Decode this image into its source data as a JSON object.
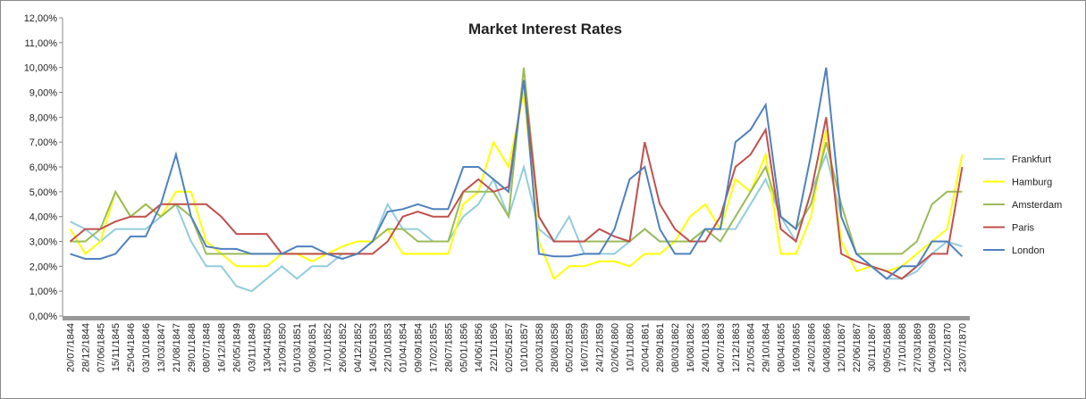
{
  "chart_data": {
    "type": "line",
    "title": "Market Interest Rates",
    "categories": [
      "20/07/1844",
      "28/12/1844",
      "07/06/1845",
      "15/11/1845",
      "25/04/1846",
      "03/10/1846",
      "13/03/1847",
      "21/08/1847",
      "29/01/1848",
      "08/07/1848",
      "16/12/1848",
      "26/05/1849",
      "03/11/1849",
      "13/04/1850",
      "21/09/1850",
      "01/03/1851",
      "09/08/1851",
      "17/01/1852",
      "26/06/1852",
      "04/12/1852",
      "14/05/1853",
      "22/10/1853",
      "01/04/1854",
      "09/09/1854",
      "17/02/1855",
      "28/07/1855",
      "05/01/1856",
      "14/06/1856",
      "22/11/1856",
      "02/05/1857",
      "10/10/1857",
      "20/03/1858",
      "28/08/1858",
      "05/02/1859",
      "16/07/1859",
      "24/12/1859",
      "02/06/1860",
      "10/11/1860",
      "20/04/1861",
      "28/09/1861",
      "08/03/1862",
      "16/08/1862",
      "24/01/1863",
      "04/07/1863",
      "12/12/1863",
      "21/05/1864",
      "29/10/1864",
      "08/04/1865",
      "16/09/1865",
      "24/02/1866",
      "04/08/1866",
      "12/01/1867",
      "22/06/1867",
      "30/11/1867",
      "09/05/1868",
      "17/10/1868",
      "27/03/1869",
      "04/09/1869",
      "12/02/1870",
      "23/07/1870"
    ],
    "series": [
      {
        "name": "Frankfurt",
        "color": "#93cddd",
        "values": [
          3.8,
          3.5,
          3,
          3.5,
          3.5,
          3.5,
          4,
          4.5,
          3,
          2,
          2,
          1.2,
          1,
          1.5,
          2,
          1.5,
          2,
          2,
          2.5,
          2.5,
          3,
          4.5,
          3.5,
          3.5,
          3,
          3,
          4,
          4.5,
          5.5,
          4,
          6,
          3.5,
          3,
          4,
          2.5,
          2.5,
          2.5,
          3,
          3.5,
          3,
          3,
          3,
          3.5,
          3.5,
          3.5,
          4.5,
          5.5,
          4,
          3,
          5,
          6.5,
          4,
          2.5,
          2,
          1.5,
          1.5,
          1.8,
          2.5,
          3,
          2.8
        ]
      },
      {
        "name": "Hamburg",
        "color": "#ffff00",
        "values": [
          3.5,
          2.5,
          3,
          5,
          4,
          4.5,
          4,
          5,
          5,
          3,
          2.5,
          2,
          2,
          2,
          2.5,
          2.5,
          2.2,
          2.5,
          2.8,
          3,
          3,
          3.5,
          2.5,
          2.5,
          2.5,
          2.5,
          4.5,
          5,
          7,
          6,
          9,
          3,
          1.5,
          2,
          2,
          2.2,
          2.2,
          2,
          2.5,
          2.5,
          3,
          4,
          4.5,
          3.5,
          5.5,
          5,
          6.5,
          2.5,
          2.5,
          4,
          7.5,
          3,
          1.8,
          2,
          1.8,
          2,
          2.5,
          3,
          3.5,
          6.5
        ]
      },
      {
        "name": "Amsterdam",
        "color": "#9bbb59",
        "values": [
          3,
          3,
          3.5,
          5,
          4,
          4.5,
          4,
          4.5,
          4,
          2.5,
          2.5,
          2.5,
          2.5,
          2.5,
          2.5,
          2.5,
          2.5,
          2.5,
          2.5,
          2.5,
          3,
          3.5,
          3.5,
          3,
          3,
          3,
          5,
          5,
          5,
          4,
          10,
          4,
          3,
          3,
          3,
          3,
          3,
          3,
          3.5,
          3,
          3,
          3,
          3.5,
          3,
          4,
          5,
          6,
          4,
          3.5,
          4.5,
          7,
          4.5,
          2.5,
          2.5,
          2.5,
          2.5,
          3,
          4.5,
          5,
          5
        ]
      },
      {
        "name": "Paris",
        "color": "#c0504d",
        "values": [
          3,
          3.5,
          3.5,
          3.8,
          4,
          4,
          4.5,
          4.5,
          4.5,
          4.5,
          4,
          3.3,
          3.3,
          3.3,
          2.5,
          2.5,
          2.5,
          2.5,
          2.5,
          2.5,
          2.5,
          3,
          4,
          4.2,
          4,
          4,
          5,
          5.5,
          5,
          5.2,
          9.5,
          4,
          3,
          3,
          3,
          3.5,
          3.2,
          3,
          7,
          4.5,
          3.5,
          3,
          3,
          4,
          6,
          6.5,
          7.5,
          3.5,
          3,
          5,
          8,
          2.5,
          2.2,
          2,
          1.8,
          1.5,
          2,
          2.5,
          2.5,
          6
        ]
      },
      {
        "name": "London",
        "color": "#4f81bd",
        "values": [
          2.5,
          2.3,
          2.3,
          2.5,
          3.2,
          3.2,
          4.5,
          6.5,
          4,
          2.8,
          2.7,
          2.7,
          2.5,
          2.5,
          2.5,
          2.8,
          2.8,
          2.5,
          2.3,
          2.5,
          3,
          4.2,
          4.3,
          4.5,
          4.3,
          4.3,
          6,
          6,
          5.5,
          5,
          9.5,
          2.5,
          2.4,
          2.4,
          2.5,
          2.5,
          3.5,
          5.5,
          6,
          3.5,
          2.5,
          2.5,
          3.5,
          3.5,
          7,
          7.5,
          8.5,
          4,
          3.5,
          6.5,
          10,
          4,
          2.5,
          2,
          1.5,
          2,
          2,
          3,
          3,
          2.4
        ]
      }
    ],
    "ylim": [
      0,
      12
    ],
    "yticks": [
      {
        "value": 0,
        "label": "0,00%"
      },
      {
        "value": 1,
        "label": "1,00%"
      },
      {
        "value": 2,
        "label": "2,00%"
      },
      {
        "value": 3,
        "label": "3,00%"
      },
      {
        "value": 4,
        "label": "4,00%"
      },
      {
        "value": 5,
        "label": "5,00%"
      },
      {
        "value": 6,
        "label": "6,00%"
      },
      {
        "value": 7,
        "label": "7,00%"
      },
      {
        "value": 8,
        "label": "8,00%"
      },
      {
        "value": 9,
        "label": "9,00%"
      },
      {
        "value": 10,
        "label": "10,00%"
      },
      {
        "value": 11,
        "label": "11,00%"
      },
      {
        "value": 12,
        "label": "12,00%"
      }
    ],
    "legend": "right",
    "grid": false
  }
}
